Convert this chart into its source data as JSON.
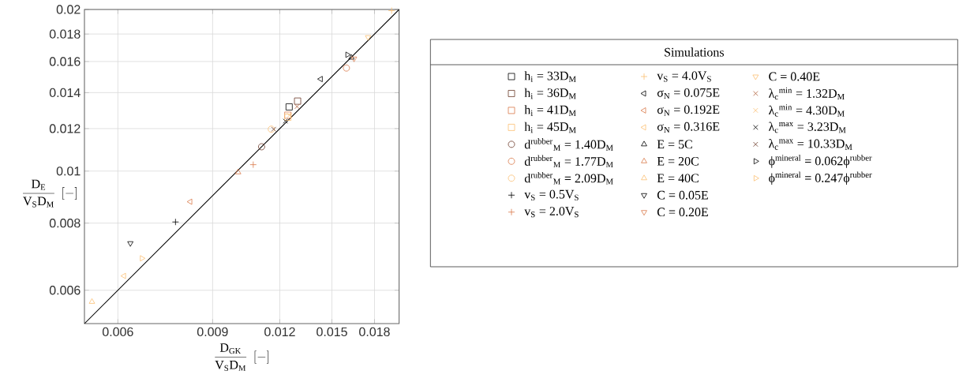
{
  "chart_data": {
    "type": "scatter",
    "xlabel": "\\frac{\\mathrm{D_{GK}}}{\\mathrm{V_{S}D_{M}}}\\;\\left[-\\right]",
    "ylabel": "\\frac{\\mathrm{D_{E}}}{\\mathrm{V_{S}D_{M}}}\\;\\left[-\\right]",
    "legend_title": "Simulations",
    "log": "xy",
    "grid": true,
    "legend": "right",
    "xlim": [
      0.0052,
      0.02
    ],
    "ylim": [
      0.0052,
      0.02
    ],
    "xticks": [
      0.006,
      0.009,
      0.012,
      0.015,
      0.018
    ],
    "yticks": [
      0.006,
      0.008,
      0.01,
      0.012,
      0.014,
      0.016,
      0.018,
      0.02
    ],
    "series": [
      {
        "name": "h$_{i}$ = 33D$_{M}$",
        "color": "#000000",
        "marker": "square",
        "x": [
          0.01249
        ],
        "values": [
          0.01317
        ]
      },
      {
        "name": "h$_{i}$ = 36D$_{M}$",
        "color": "#6b3a2a",
        "marker": "square",
        "x": [
          0.01295
        ],
        "values": [
          0.0135
        ]
      },
      {
        "name": "h$_{i}$ = 41D$_{M}$",
        "color": "#d97a4a",
        "marker": "square",
        "x": [
          0.01242
        ],
        "values": [
          0.01271
        ]
      },
      {
        "name": "h$_{i}$ = 45D$_{M}$",
        "color": "#fbbf72",
        "marker": "square",
        "x": [
          0.01242
        ],
        "values": [
          0.0126
        ]
      },
      {
        "name": "d$^{rubber}$$_{M}$ = 1.40D$_{M}$",
        "color": "#6b3a2a",
        "marker": "circle",
        "x": [
          0.0111
        ],
        "values": [
          0.0111
        ]
      },
      {
        "name": "d$^{rubber}$$_{M}$ = 1.77D$_{M}$",
        "color": "#d97a4a",
        "marker": "circle",
        "x": [
          0.01596
        ],
        "values": [
          0.01556
        ]
      },
      {
        "name": "d$^{rubber}$$_{M}$ = 2.09D$_{M}$",
        "color": "#fbbf72",
        "marker": "circle",
        "x": [
          0.01157
        ],
        "values": [
          0.01197
        ]
      },
      {
        "name": "v$_{S}$ = 0.5V$_{S}$",
        "color": "#000000",
        "marker": "plus",
        "x": [
          0.00768
        ],
        "values": [
          0.00804
        ]
      },
      {
        "name": "v$_{S}$ = 2.0V$_{S}$",
        "color": "#d97a4a",
        "marker": "plus",
        "x": [
          0.01071
        ],
        "values": [
          0.01028
        ]
      },
      {
        "name": "v$_{S}$ = 4.0V$_{S}$",
        "color": "#fbbf72",
        "marker": "plus",
        "x": [
          0.01937
        ],
        "values": [
          0.0199
        ]
      },
      {
        "name": "σ$_{N}$ = 0.075E",
        "color": "#000000",
        "marker": "triangle-left",
        "x": [
          0.0143
        ],
        "values": [
          0.01484
        ]
      },
      {
        "name": "σ$_{N}$ = 0.192E",
        "color": "#d97a4a",
        "marker": "triangle-left",
        "x": [
          0.00818
        ],
        "values": [
          0.00877
        ]
      },
      {
        "name": "σ$_{N}$ = 0.316E",
        "color": "#fbbf72",
        "marker": "triangle-left",
        "x": [
          0.00616
        ],
        "values": [
          0.00638
        ]
      },
      {
        "name": "E = 5C",
        "color": "#000000",
        "marker": "triangle",
        "x": [
          0.01631
        ],
        "values": [
          0.01627
        ]
      },
      {
        "name": "E = 20C",
        "color": "#d97a4a",
        "marker": "triangle",
        "x": [
          0.01004
        ],
        "values": [
          0.00995
        ]
      },
      {
        "name": "E = 40C",
        "color": "#fbbf72",
        "marker": "triangle",
        "x": [
          0.00537
        ],
        "values": [
          0.00571
        ]
      },
      {
        "name": "C = 0.05E",
        "color": "#000000",
        "marker": "triangle-down",
        "x": [
          0.00633
        ],
        "values": [
          0.00734
        ]
      },
      {
        "name": "C = 0.20E",
        "color": "#d97a4a",
        "marker": "triangle-down",
        "x": [
          0.01649
        ],
        "values": [
          0.0162
        ]
      },
      {
        "name": "C = 0.40E",
        "color": "#fbbf72",
        "marker": "triangle-down",
        "x": [
          0.01751
        ],
        "values": [
          0.01776
        ]
      },
      {
        "name": "λ$_{c}$$^{min}$ = 1.32D$_{M}$",
        "color": "#b0603a",
        "marker": "x",
        "x": [
          0.01292
        ],
        "values": [
          0.01319
        ]
      },
      {
        "name": "λ$_{c}$$^{min}$ = 4.30D$_{M}$",
        "color": "#fbbf72",
        "marker": "x",
        "x": [
          0.0125
        ],
        "values": [
          0.0127
        ]
      },
      {
        "name": "λ$_{c}$$^{max}$ = 3.23D$_{M}$",
        "color": "#000000",
        "marker": "x",
        "x": [
          0.01229
        ],
        "values": [
          0.01239
        ]
      },
      {
        "name": "λ$_{c}$$^{max}$ = 10.33D$_{M}$",
        "color": "#6b3a2a",
        "marker": "x",
        "x": [
          0.01169
        ],
        "values": [
          0.01197
        ]
      },
      {
        "name": "ϕ$^{mineral}$ = 0.062ϕ$^{rubber}$",
        "color": "#000000",
        "marker": "triangle-right",
        "x": [
          0.01603
        ],
        "values": [
          0.01647
        ]
      },
      {
        "name": "ϕ$^{mineral}$ = 0.247ϕ$^{rubber}$",
        "color": "#fbbf72",
        "marker": "triangle-right",
        "x": [
          0.00665
        ],
        "values": [
          0.00688
        ]
      },
      {
        "type": "line",
        "color": "#000000",
        "x": [
          0.0052,
          0.02
        ],
        "values": [
          0.0052,
          0.02
        ]
      }
    ]
  }
}
